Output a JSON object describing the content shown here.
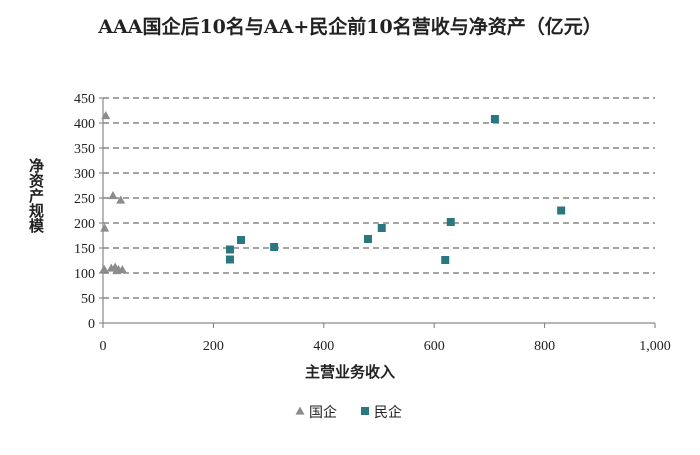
{
  "chart_data": {
    "type": "scatter",
    "title": "AAA国企后10名与AA+民企前10名营收与净资产（亿元）",
    "xlabel": "主营业务收入",
    "ylabel": "净资产规模",
    "xlim": [
      0,
      1000
    ],
    "ylim": [
      0,
      450
    ],
    "x_ticks": [
      "0",
      "200",
      "400",
      "600",
      "800",
      "1,000"
    ],
    "y_ticks": [
      "0",
      "50",
      "100",
      "150",
      "200",
      "250",
      "300",
      "350",
      "400",
      "450"
    ],
    "grid": "horizontal-dashed",
    "legend_position": "bottom",
    "series": [
      {
        "name": "国企",
        "marker": "triangle",
        "color": "#8c8c8c",
        "points": [
          [
            5,
            415
          ],
          [
            3,
            190
          ],
          [
            18,
            255
          ],
          [
            32,
            246
          ],
          [
            2,
            108
          ],
          [
            15,
            110
          ],
          [
            22,
            112
          ],
          [
            25,
            105
          ],
          [
            28,
            107
          ],
          [
            35,
            107
          ]
        ]
      },
      {
        "name": "民企",
        "marker": "square",
        "color": "#2a787f",
        "points": [
          [
            230,
            147
          ],
          [
            230,
            127
          ],
          [
            250,
            166
          ],
          [
            310,
            152
          ],
          [
            480,
            168
          ],
          [
            505,
            190
          ],
          [
            620,
            126
          ],
          [
            630,
            202
          ],
          [
            710,
            408
          ],
          [
            830,
            225
          ]
        ]
      }
    ]
  }
}
